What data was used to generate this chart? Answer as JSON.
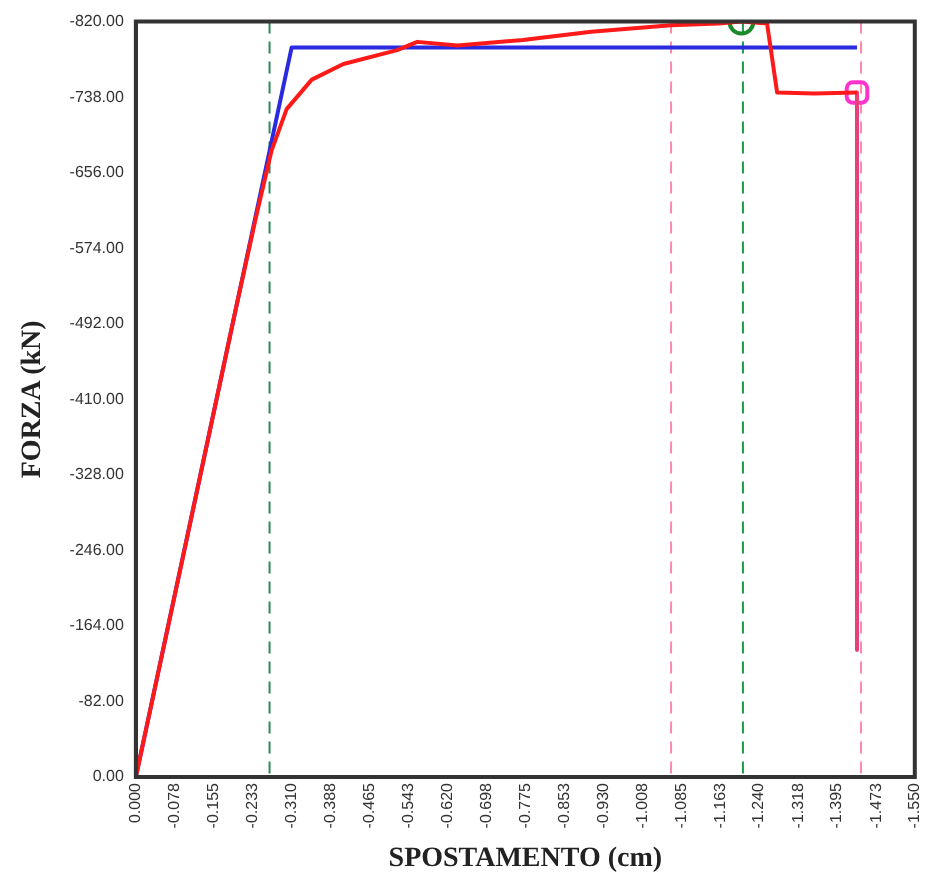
{
  "chart_data": {
    "type": "line",
    "xlabel": "SPOSTAMENTO (cm)",
    "ylabel": "FORZA (kN)",
    "xlim": [
      0,
      -1.55
    ],
    "xticks": [
      {
        "value": 0,
        "label": "0.000"
      },
      {
        "value": -0.078,
        "label": "-0.078"
      },
      {
        "value": -0.155,
        "label": "-0.155"
      },
      {
        "value": -0.233,
        "label": "-0.233"
      },
      {
        "value": -0.31,
        "label": "-0.310"
      },
      {
        "value": -0.388,
        "label": "-0.388"
      },
      {
        "value": -0.465,
        "label": "-0.465"
      },
      {
        "value": -0.543,
        "label": "-0.543"
      },
      {
        "value": -0.62,
        "label": "-0.620"
      },
      {
        "value": -0.698,
        "label": "-0.698"
      },
      {
        "value": -0.775,
        "label": "-0.775"
      },
      {
        "value": -0.853,
        "label": "-0.853"
      },
      {
        "value": -0.93,
        "label": "-0.930"
      },
      {
        "value": -1.008,
        "label": "-1.008"
      },
      {
        "value": -1.085,
        "label": "-1.085"
      },
      {
        "value": -1.163,
        "label": "-1.163"
      },
      {
        "value": -1.24,
        "label": "-1.240"
      },
      {
        "value": -1.318,
        "label": "-1.318"
      },
      {
        "value": -1.395,
        "label": "-1.395"
      },
      {
        "value": -1.473,
        "label": "-1.473"
      },
      {
        "value": -1.55,
        "label": "-1.550"
      }
    ],
    "ylim": [
      0,
      -820
    ],
    "yticks": [
      {
        "value": 0,
        "label": "0.00"
      },
      {
        "value": -82,
        "label": "-82.00"
      },
      {
        "value": -164,
        "label": "-164.00"
      },
      {
        "value": -246,
        "label": "-246.00"
      },
      {
        "value": -328,
        "label": "-328.00"
      },
      {
        "value": -410,
        "label": "-410.00"
      },
      {
        "value": -492,
        "label": "-492.00"
      },
      {
        "value": -574,
        "label": "-574.00"
      },
      {
        "value": -656,
        "label": "-656.00"
      },
      {
        "value": -738,
        "label": "-738.00"
      },
      {
        "value": -820,
        "label": "-820.00"
      }
    ],
    "grid": false,
    "legend": false,
    "marker": "none",
    "line_style": "solid",
    "series": [
      {
        "color": "#ff1a1a",
        "x": [
          0,
          -0.1,
          -0.2,
          -0.24,
          -0.27,
          -0.3,
          -0.35,
          -0.413,
          -0.52,
          -0.56,
          -0.64,
          -0.77,
          -0.906,
          -1.065,
          -1.16,
          -1.205,
          -1.256,
          -1.276,
          -1.35,
          -1.435
        ],
        "values": [
          0,
          -255,
          -511,
          -610,
          -680,
          -725,
          -757,
          -774,
          -789,
          -798,
          -794,
          -800,
          -809,
          -816,
          -818,
          -820,
          -818,
          -743,
          -742,
          -743
        ]
      },
      {
        "color": "#e8407a",
        "x": [
          -1.435,
          -1.435
        ],
        "values": [
          -743,
          -138
        ]
      },
      {
        "color": "#2a2ae0",
        "x": [
          0,
          -0.31,
          -1.435
        ],
        "values": [
          0,
          -792,
          -792
        ]
      },
      {
        "type": "scatter",
        "marker": "circle",
        "color": "#1a8a2a",
        "x": [
          -1.205
        ],
        "values": [
          -820
        ]
      },
      {
        "type": "scatter",
        "marker": "square",
        "color": "#ff33cc",
        "x": [
          -1.435
        ],
        "values": [
          -743
        ]
      }
    ],
    "ref_lines": [
      {
        "axis": "x",
        "value": -0.266,
        "color": "#2a8a5a",
        "line_style": "dashed"
      },
      {
        "axis": "x",
        "value": -1.065,
        "color": "#ff88aa",
        "line_style": "dashed"
      },
      {
        "axis": "x",
        "value": -1.208,
        "color": "#1a9a4a",
        "line_style": "dashed"
      },
      {
        "axis": "x",
        "value": -1.443,
        "color": "#ff88aa",
        "line_style": "dashed"
      }
    ]
  }
}
